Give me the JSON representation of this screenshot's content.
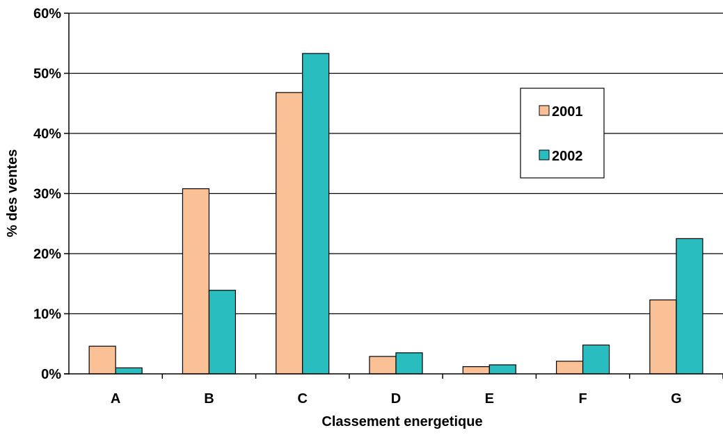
{
  "chart_data": {
    "type": "bar",
    "title": "",
    "xlabel": "Classement energetique",
    "ylabel": "% des ventes",
    "ylim": [
      0,
      60
    ],
    "yticks": [
      0,
      10,
      20,
      30,
      40,
      50,
      60
    ],
    "ytick_labels": [
      "0%",
      "10%",
      "20%",
      "30%",
      "40%",
      "50%",
      "60%"
    ],
    "grid": true,
    "legend": "top-right",
    "categories": [
      "A",
      "B",
      "C",
      "D",
      "E",
      "F",
      "G"
    ],
    "series": [
      {
        "name": "2001",
        "color": "#F9C195",
        "values": [
          4.6,
          30.8,
          46.8,
          2.9,
          1.2,
          2.1,
          12.3
        ]
      },
      {
        "name": "2002",
        "color": "#2ABDBF",
        "values": [
          1.0,
          13.9,
          53.3,
          3.5,
          1.5,
          4.8,
          22.5
        ]
      }
    ]
  }
}
